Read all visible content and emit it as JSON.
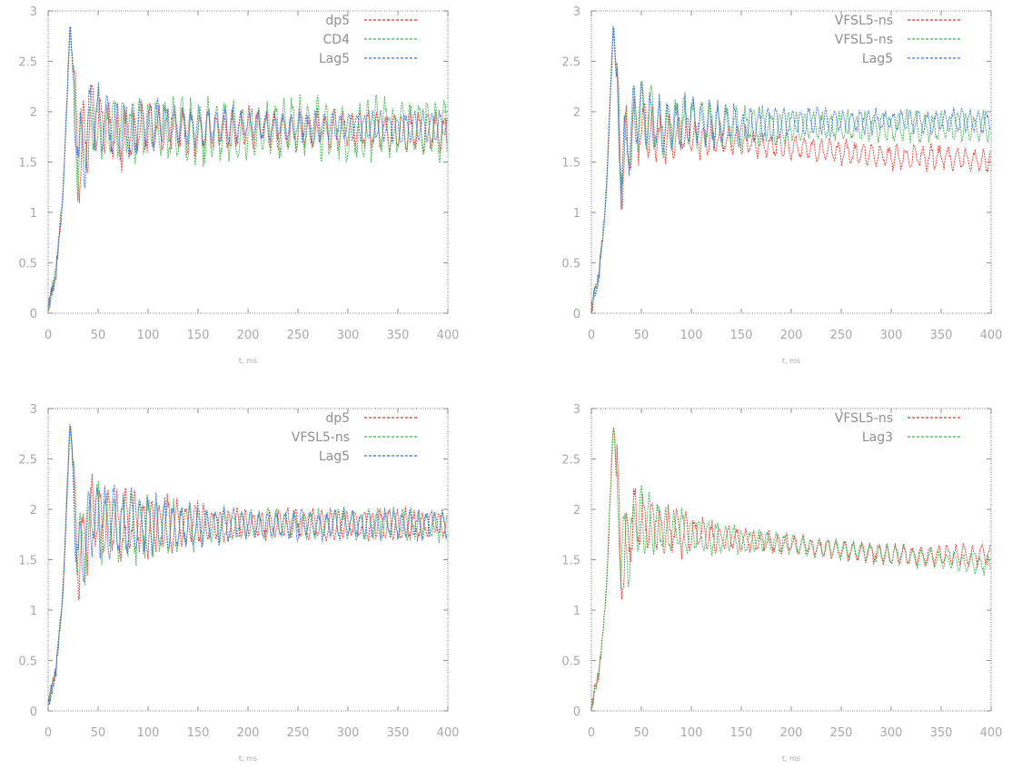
{
  "chart_data": [
    {
      "type": "line",
      "xlabel": "t, ms",
      "xlim": [
        0,
        400
      ],
      "ylim": [
        0,
        3
      ],
      "x_ticks": [
        "0",
        "50",
        "100",
        "150",
        "200",
        "250",
        "300",
        "350",
        "400"
      ],
      "y_ticks": [
        "0",
        "0.5",
        "1",
        "1.5",
        "2",
        "2.5",
        "3"
      ],
      "legend_position": "top-right",
      "series": [
        {
          "name": "dp5",
          "color": "#e8322a",
          "x": [
            0,
            8,
            15,
            22,
            30,
            45,
            70,
            100,
            150,
            200,
            250,
            300,
            350,
            400
          ],
          "y": [
            0.05,
            0.4,
            1.2,
            2.9,
            1.45,
            2.0,
            1.75,
            1.85,
            1.8,
            1.85,
            1.8,
            1.85,
            1.8,
            1.8
          ],
          "spread": [
            0.05,
            0.15,
            0.2,
            0.25,
            0.45,
            0.35,
            0.3,
            0.25,
            0.2,
            0.2,
            0.2,
            0.2,
            0.2,
            0.2
          ]
        },
        {
          "name": "CD4",
          "color": "#3cb44b",
          "x": [
            0,
            8,
            15,
            22,
            30,
            45,
            70,
            100,
            150,
            200,
            250,
            300,
            350,
            400
          ],
          "y": [
            0.05,
            0.4,
            1.2,
            2.9,
            1.5,
            1.95,
            1.8,
            1.85,
            1.8,
            1.8,
            1.85,
            1.8,
            1.85,
            1.8
          ],
          "spread": [
            0.05,
            0.15,
            0.2,
            0.25,
            0.45,
            0.35,
            0.3,
            0.3,
            0.35,
            0.3,
            0.3,
            0.3,
            0.3,
            0.3
          ]
        },
        {
          "name": "Lag5",
          "color": "#3a6fd8",
          "x": [
            0,
            8,
            15,
            22,
            30,
            45,
            70,
            100,
            150,
            200,
            250,
            300,
            350,
            400
          ],
          "y": [
            0.05,
            0.4,
            1.2,
            2.9,
            1.45,
            2.0,
            1.8,
            1.9,
            1.85,
            1.85,
            1.85,
            1.85,
            1.85,
            1.85
          ],
          "spread": [
            0.05,
            0.15,
            0.2,
            0.25,
            0.45,
            0.35,
            0.3,
            0.25,
            0.2,
            0.15,
            0.15,
            0.15,
            0.15,
            0.15
          ]
        }
      ]
    },
    {
      "type": "line",
      "xlabel": "t, ms",
      "xlim": [
        0,
        400
      ],
      "ylim": [
        0,
        3
      ],
      "x_ticks": [
        "0",
        "50",
        "100",
        "150",
        "200",
        "250",
        "300",
        "350",
        "400"
      ],
      "y_ticks": [
        "0",
        "0.5",
        "1",
        "1.5",
        "2",
        "2.5",
        "3"
      ],
      "legend_position": "top-right",
      "series": [
        {
          "name": "VFSL5-ns",
          "color": "#e8322a",
          "x": [
            0,
            8,
            15,
            22,
            30,
            45,
            70,
            100,
            150,
            200,
            250,
            300,
            350,
            400
          ],
          "y": [
            0.05,
            0.4,
            1.2,
            2.9,
            1.45,
            1.85,
            1.75,
            1.75,
            1.7,
            1.65,
            1.6,
            1.55,
            1.55,
            1.5
          ],
          "spread": [
            0.05,
            0.15,
            0.2,
            0.25,
            0.45,
            0.35,
            0.25,
            0.2,
            0.15,
            0.12,
            0.12,
            0.12,
            0.12,
            0.12
          ]
        },
        {
          "name": "VFSL5-ns",
          "color": "#3cb44b",
          "x": [
            0,
            8,
            15,
            22,
            30,
            45,
            70,
            100,
            150,
            200,
            250,
            300,
            350,
            400
          ],
          "y": [
            0.05,
            0.4,
            1.2,
            2.9,
            1.5,
            2.0,
            1.85,
            1.9,
            1.85,
            1.85,
            1.85,
            1.85,
            1.85,
            1.85
          ],
          "spread": [
            0.05,
            0.15,
            0.2,
            0.25,
            0.45,
            0.35,
            0.3,
            0.25,
            0.2,
            0.15,
            0.15,
            0.15,
            0.15,
            0.15
          ]
        },
        {
          "name": "Lag5",
          "color": "#3a6fd8",
          "x": [
            0,
            8,
            15,
            22,
            30,
            45,
            70,
            100,
            150,
            200,
            250,
            300,
            350,
            400
          ],
          "y": [
            0.05,
            0.4,
            1.2,
            2.9,
            1.45,
            2.0,
            1.85,
            1.9,
            1.85,
            1.9,
            1.9,
            1.9,
            1.9,
            1.9
          ],
          "spread": [
            0.05,
            0.15,
            0.2,
            0.25,
            0.45,
            0.35,
            0.3,
            0.25,
            0.2,
            0.15,
            0.12,
            0.12,
            0.12,
            0.12
          ]
        }
      ]
    },
    {
      "type": "line",
      "xlabel": "t, ms",
      "xlim": [
        0,
        400
      ],
      "ylim": [
        0,
        3
      ],
      "x_ticks": [
        "0",
        "50",
        "100",
        "150",
        "200",
        "250",
        "300",
        "350",
        "400"
      ],
      "y_ticks": [
        "0",
        "0.5",
        "1",
        "1.5",
        "2",
        "2.5",
        "3"
      ],
      "legend_position": "top-right",
      "series": [
        {
          "name": "dp5",
          "color": "#e8322a",
          "x": [
            0,
            8,
            15,
            22,
            30,
            45,
            70,
            100,
            150,
            200,
            250,
            300,
            350,
            400
          ],
          "y": [
            0.05,
            0.4,
            1.2,
            2.9,
            1.45,
            1.95,
            1.85,
            1.85,
            1.85,
            1.85,
            1.85,
            1.85,
            1.85,
            1.85
          ],
          "spread": [
            0.05,
            0.15,
            0.2,
            0.25,
            0.45,
            0.4,
            0.35,
            0.3,
            0.2,
            0.15,
            0.15,
            0.15,
            0.15,
            0.15
          ]
        },
        {
          "name": "VFSL5-ns",
          "color": "#3cb44b",
          "x": [
            0,
            8,
            15,
            22,
            30,
            45,
            70,
            100,
            150,
            200,
            250,
            300,
            350,
            400
          ],
          "y": [
            0.05,
            0.4,
            1.2,
            2.9,
            1.5,
            1.95,
            1.8,
            1.85,
            1.8,
            1.85,
            1.85,
            1.85,
            1.85,
            1.85
          ],
          "spread": [
            0.05,
            0.15,
            0.2,
            0.25,
            0.45,
            0.4,
            0.35,
            0.3,
            0.2,
            0.15,
            0.15,
            0.15,
            0.15,
            0.15
          ]
        },
        {
          "name": "Lag5",
          "color": "#3a6fd8",
          "x": [
            0,
            8,
            15,
            22,
            30,
            45,
            70,
            100,
            150,
            200,
            250,
            300,
            350,
            400
          ],
          "y": [
            0.05,
            0.4,
            1.2,
            2.9,
            1.45,
            1.95,
            1.85,
            1.85,
            1.85,
            1.85,
            1.85,
            1.85,
            1.85,
            1.85
          ],
          "spread": [
            0.05,
            0.15,
            0.2,
            0.25,
            0.45,
            0.4,
            0.35,
            0.3,
            0.2,
            0.15,
            0.15,
            0.15,
            0.15,
            0.15
          ]
        }
      ]
    },
    {
      "type": "line",
      "xlabel": "t, ms",
      "xlim": [
        0,
        400
      ],
      "ylim": [
        0,
        3
      ],
      "x_ticks": [
        "0",
        "50",
        "100",
        "150",
        "200",
        "250",
        "300",
        "350",
        "400"
      ],
      "y_ticks": [
        "0",
        "0.5",
        "1",
        "1.5",
        "2",
        "2.5",
        "3"
      ],
      "legend_position": "top-right",
      "series": [
        {
          "name": "VFSL5-ns",
          "color": "#e8322a",
          "x": [
            0,
            8,
            15,
            22,
            30,
            45,
            70,
            100,
            150,
            200,
            250,
            300,
            350,
            400
          ],
          "y": [
            0.05,
            0.4,
            1.2,
            2.9,
            1.45,
            1.9,
            1.8,
            1.75,
            1.7,
            1.65,
            1.6,
            1.55,
            1.55,
            1.55
          ],
          "spread": [
            0.05,
            0.15,
            0.2,
            0.25,
            0.45,
            0.35,
            0.25,
            0.2,
            0.12,
            0.1,
            0.1,
            0.1,
            0.1,
            0.1
          ]
        },
        {
          "name": "Lag3",
          "color": "#3cb44b",
          "x": [
            0,
            8,
            15,
            22,
            30,
            45,
            70,
            100,
            150,
            200,
            250,
            300,
            350,
            400
          ],
          "y": [
            0.05,
            0.4,
            1.2,
            2.9,
            1.45,
            1.9,
            1.8,
            1.75,
            1.7,
            1.65,
            1.6,
            1.55,
            1.5,
            1.45
          ],
          "spread": [
            0.05,
            0.15,
            0.2,
            0.25,
            0.45,
            0.35,
            0.25,
            0.2,
            0.12,
            0.1,
            0.1,
            0.1,
            0.1,
            0.1
          ]
        }
      ]
    }
  ]
}
